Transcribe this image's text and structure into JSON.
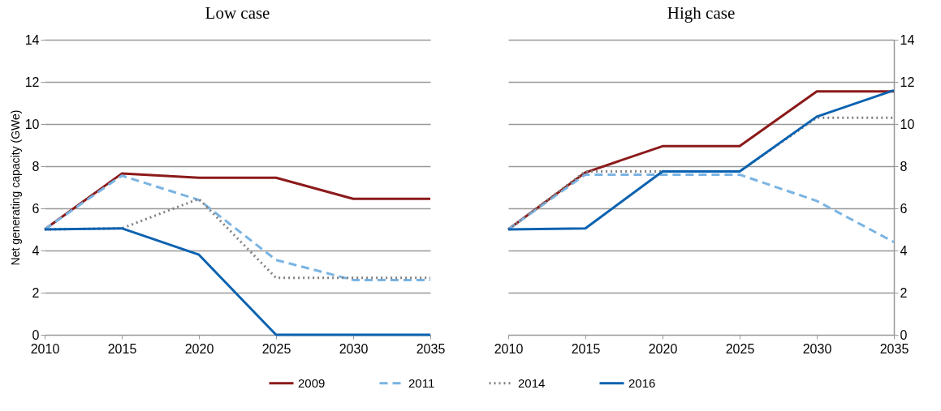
{
  "chart_data": [
    {
      "type": "line",
      "title": "Low case",
      "ylabel": "Net generating capacity (GWe)",
      "x": [
        2010,
        2015,
        2020,
        2025,
        2030,
        2035
      ],
      "xlim": [
        2010,
        2035
      ],
      "xticks": [
        2010,
        2015,
        2020,
        2025,
        2030,
        2035
      ],
      "ylim": [
        0,
        14
      ],
      "yticks": [
        0,
        2,
        4,
        6,
        8,
        10,
        12,
        14
      ],
      "grid": "y",
      "legend": "bottom",
      "marker": "none",
      "series": [
        {
          "name": "2009",
          "color": "#8b1a1a",
          "line_style": "solid",
          "values": [
            5,
            7.65,
            7.45,
            7.45,
            6.45,
            6.45
          ]
        },
        {
          "name": "2011",
          "color": "#7ab4e3",
          "line_style": "dashed",
          "values": [
            5,
            7.55,
            6.4,
            3.55,
            2.6,
            2.6
          ]
        },
        {
          "name": "2014",
          "color": "#808080",
          "line_style": "dotted",
          "values": [
            5,
            5.05,
            6.45,
            2.7,
            2.7,
            2.7
          ]
        },
        {
          "name": "2016",
          "color": "#0b62b0",
          "line_style": "solid",
          "values": [
            5,
            5.05,
            3.8,
            0,
            0,
            0
          ]
        }
      ]
    },
    {
      "type": "line",
      "title": "High case",
      "x": [
        2010,
        2015,
        2020,
        2025,
        2030,
        2035
      ],
      "xlim": [
        2010,
        2035
      ],
      "xticks": [
        2010,
        2015,
        2020,
        2025,
        2030,
        2035
      ],
      "ylim": [
        0,
        14
      ],
      "yticks": [
        0,
        2,
        4,
        6,
        8,
        10,
        12,
        14
      ],
      "grid": "y",
      "marker": "none",
      "series": [
        {
          "name": "2009",
          "color": "#8b1a1a",
          "line_style": "solid",
          "values": [
            5,
            7.7,
            8.95,
            8.95,
            11.55,
            11.55
          ]
        },
        {
          "name": "2011",
          "color": "#7ab4e3",
          "line_style": "dashed",
          "values": [
            5,
            7.6,
            7.6,
            7.6,
            6.35,
            4.4
          ]
        },
        {
          "name": "2014",
          "color": "#808080",
          "line_style": "dotted",
          "values": [
            5,
            7.75,
            7.75,
            7.75,
            10.3,
            10.3
          ]
        },
        {
          "name": "2016",
          "color": "#0b62b0",
          "line_style": "solid",
          "values": [
            5,
            5.05,
            7.75,
            7.75,
            10.35,
            11.6
          ]
        }
      ]
    }
  ]
}
